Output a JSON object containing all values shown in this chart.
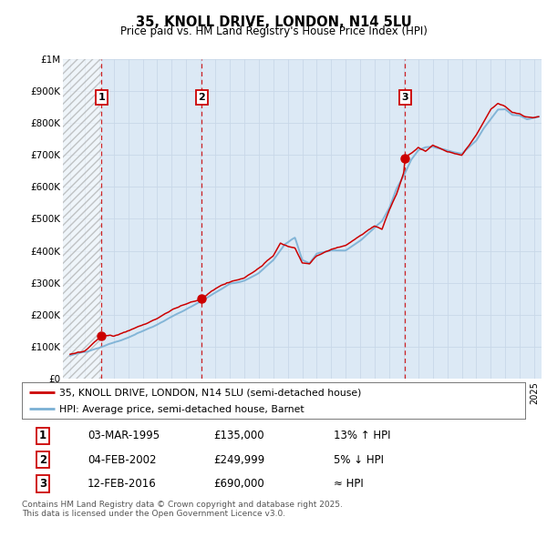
{
  "title": "35, KNOLL DRIVE, LONDON, N14 5LU",
  "subtitle": "Price paid vs. HM Land Registry's House Price Index (HPI)",
  "ylim": [
    0,
    1000000
  ],
  "xlim_start": 1992.5,
  "xlim_end": 2025.5,
  "ytick_labels": [
    "£0",
    "£100K",
    "£200K",
    "£300K",
    "£400K",
    "£500K",
    "£600K",
    "£700K",
    "£800K",
    "£900K",
    "£1M"
  ],
  "ytick_values": [
    0,
    100000,
    200000,
    300000,
    400000,
    500000,
    600000,
    700000,
    800000,
    900000,
    1000000
  ],
  "bg_color": "#dce9f5",
  "hatch_start": 1992.5,
  "hatch_end": 1995.17,
  "sale1_year": 1995.17,
  "sale1_price": 135000,
  "sale1_label": "1",
  "sale1_date": "03-MAR-1995",
  "sale1_price_str": "£135,000",
  "sale1_hpi": "13% ↑ HPI",
  "sale2_year": 2002.08,
  "sale2_price": 249999,
  "sale2_label": "2",
  "sale2_date": "04-FEB-2002",
  "sale2_price_str": "£249,999",
  "sale2_hpi": "5% ↓ HPI",
  "sale3_year": 2016.1,
  "sale3_price": 690000,
  "sale3_label": "3",
  "sale3_date": "12-FEB-2016",
  "sale3_price_str": "£690,000",
  "sale3_hpi": "≈ HPI",
  "legend_line1": "35, KNOLL DRIVE, LONDON, N14 5LU (semi-detached house)",
  "legend_line2": "HPI: Average price, semi-detached house, Barnet",
  "footer": "Contains HM Land Registry data © Crown copyright and database right 2025.\nThis data is licensed under the Open Government Licence v3.0.",
  "red_color": "#cc0000",
  "blue_color": "#7ab0d4",
  "grid_color": "#c8d8e8"
}
